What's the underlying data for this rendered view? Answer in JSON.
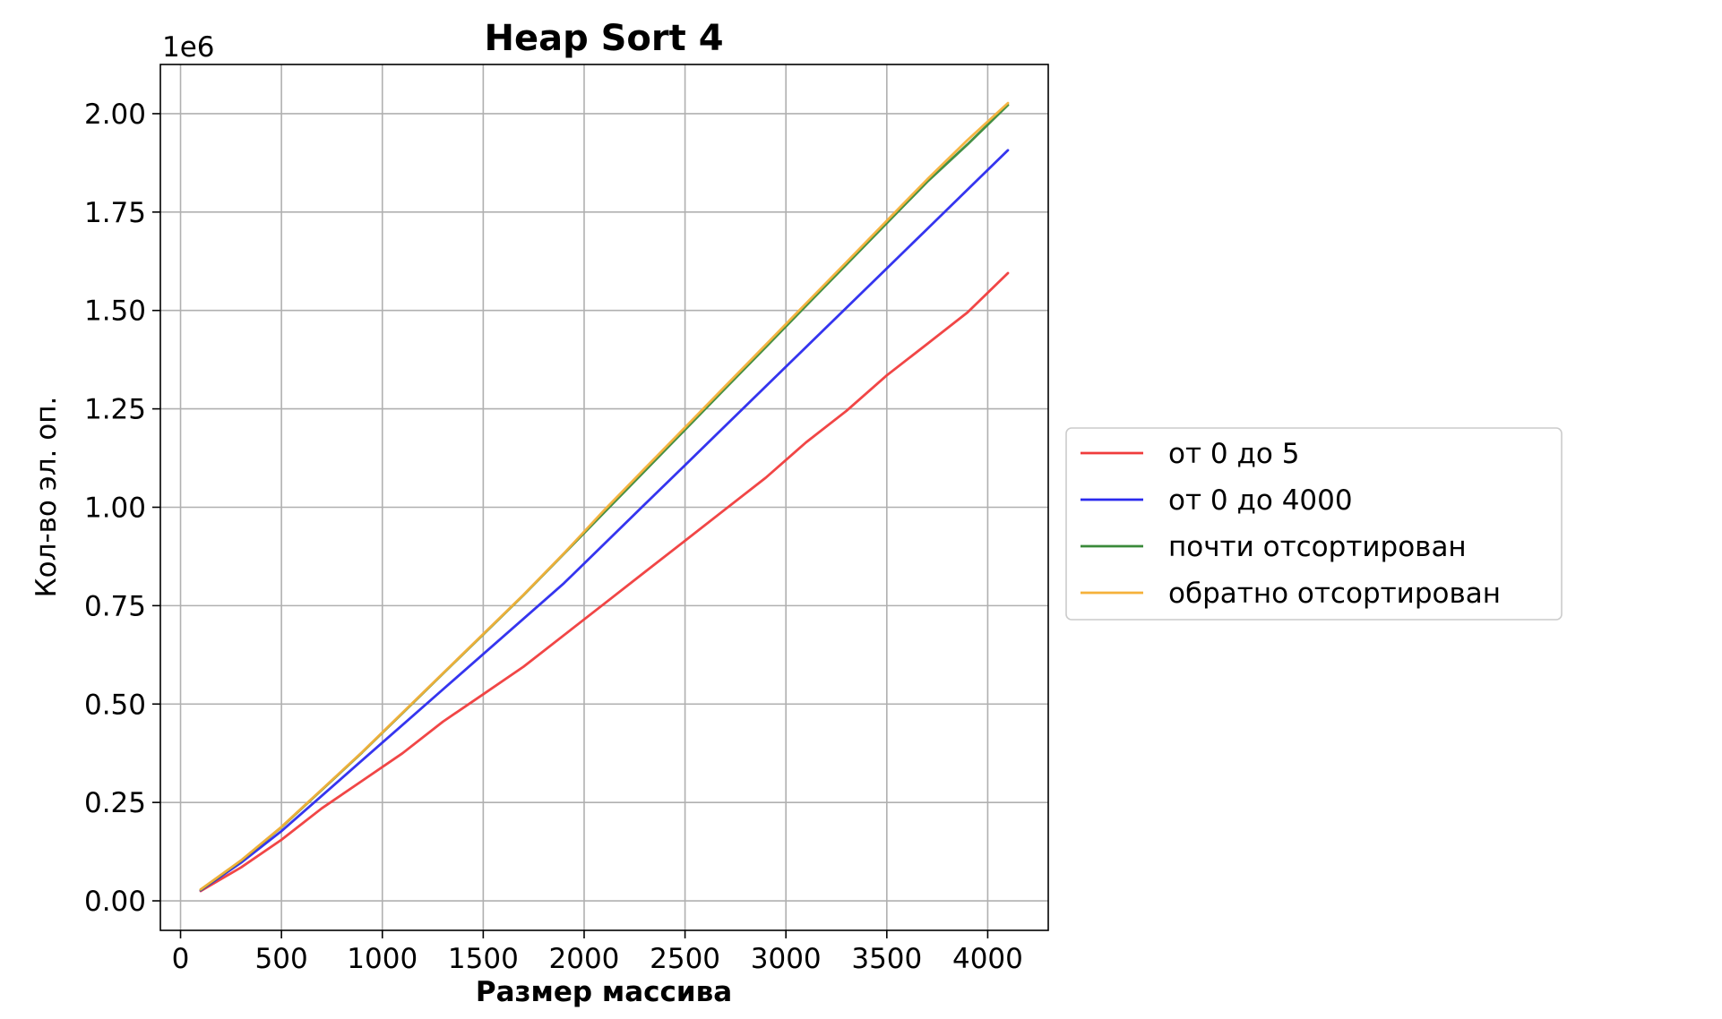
{
  "chart_data": {
    "type": "line",
    "title": "Heap Sort 4",
    "xlabel": "Размер массива",
    "ylabel": "Кол-во эл. оп.",
    "y_offset_label": "1e6",
    "xlim": [
      -100,
      4300
    ],
    "ylim": [
      -0.075,
      2.125
    ],
    "x_ticks": [
      0,
      500,
      1000,
      1500,
      2000,
      2500,
      3000,
      3500,
      4000
    ],
    "x_tick_labels": [
      "0",
      "500",
      "1000",
      "1500",
      "2000",
      "2500",
      "3000",
      "3500",
      "4000"
    ],
    "y_ticks": [
      0,
      0.25,
      0.5,
      0.75,
      1.0,
      1.25,
      1.5,
      1.75,
      2.0
    ],
    "y_tick_labels": [
      "0.00",
      "0.25",
      "0.50",
      "0.75",
      "1.00",
      "1.25",
      "1.50",
      "1.75",
      "2.00"
    ],
    "grid": true,
    "legend_position": "outside-right",
    "x": [
      100,
      300,
      500,
      700,
      900,
      1100,
      1300,
      1500,
      1700,
      1900,
      2100,
      2300,
      2500,
      2700,
      2900,
      3100,
      3300,
      3500,
      3700,
      3900,
      4100
    ],
    "series": [
      {
        "name": "от 0 до 5",
        "color": "#f03c3c",
        "values": [
          0.025,
          0.085,
          0.155,
          0.235,
          0.305,
          0.375,
          0.455,
          0.525,
          0.595,
          0.675,
          0.755,
          0.835,
          0.915,
          0.995,
          1.075,
          1.165,
          1.245,
          1.335,
          1.415,
          1.495,
          1.595
        ]
      },
      {
        "name": "от 0 до 4000",
        "color": "#2a2aee",
        "values": [
          0.027,
          0.097,
          0.177,
          0.267,
          0.357,
          0.447,
          0.537,
          0.627,
          0.717,
          0.807,
          0.907,
          1.007,
          1.107,
          1.207,
          1.307,
          1.407,
          1.507,
          1.607,
          1.707,
          1.807,
          1.907
        ]
      },
      {
        "name": "почти отсортирован",
        "color": "#3a8a3a",
        "values": [
          0.028,
          0.102,
          0.187,
          0.282,
          0.377,
          0.477,
          0.577,
          0.677,
          0.777,
          0.882,
          0.987,
          1.092,
          1.197,
          1.302,
          1.407,
          1.512,
          1.617,
          1.722,
          1.827,
          1.922,
          2.022
        ]
      },
      {
        "name": "обратно отсортирован",
        "color": "#f5b13a",
        "values": [
          0.029,
          0.103,
          0.188,
          0.283,
          0.378,
          0.478,
          0.578,
          0.678,
          0.778,
          0.883,
          0.993,
          1.098,
          1.203,
          1.308,
          1.413,
          1.518,
          1.623,
          1.728,
          1.833,
          1.933,
          2.027
        ]
      }
    ]
  }
}
